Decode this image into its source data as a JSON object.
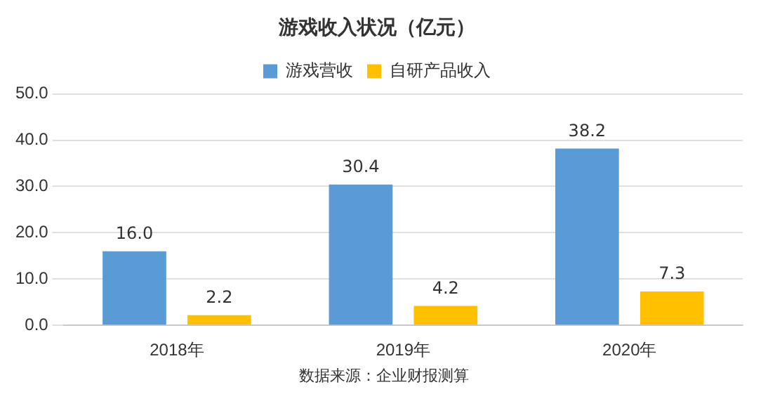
{
  "chart_data": {
    "type": "bar",
    "title": "游戏收入状况（亿元）",
    "categories": [
      "2018年",
      "2019年",
      "2020年"
    ],
    "series": [
      {
        "name": "游戏营收",
        "color": "#5b9bd5",
        "values": [
          16.0,
          30.4,
          38.2
        ],
        "value_labels": [
          "16.0",
          "30.4",
          "38.2"
        ]
      },
      {
        "name": "自研产品收入",
        "color": "#ffc000",
        "values": [
          2.2,
          4.2,
          7.3
        ],
        "value_labels": [
          "2.2",
          "4.2",
          "7.3"
        ]
      }
    ],
    "ylim": [
      0,
      50
    ],
    "yticks": [
      {
        "value": 0,
        "label": "0.0"
      },
      {
        "value": 10,
        "label": "10.0"
      },
      {
        "value": 20,
        "label": "20.0"
      },
      {
        "value": 30,
        "label": "30.0"
      },
      {
        "value": 40,
        "label": "40.0"
      },
      {
        "value": 50,
        "label": "50.0"
      }
    ],
    "grid": "y",
    "legend": "top",
    "annotations": [
      "数据来源：企业财报测算"
    ]
  }
}
